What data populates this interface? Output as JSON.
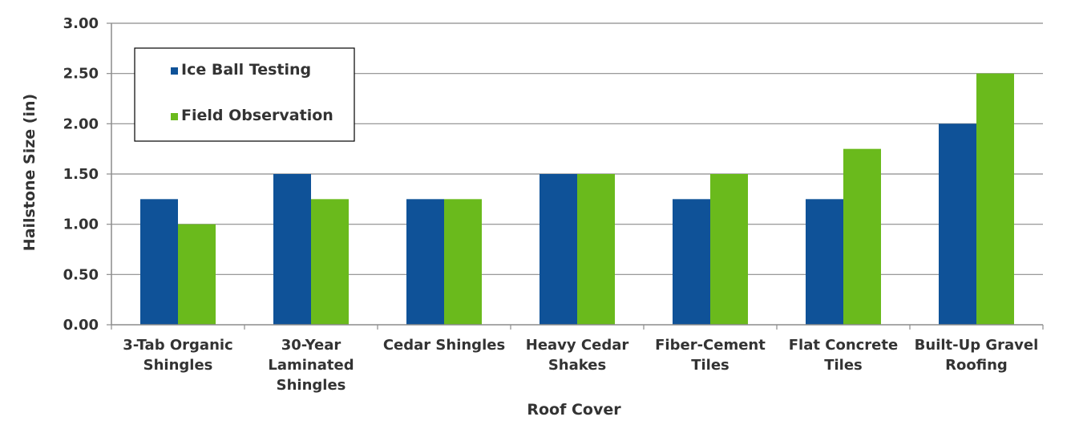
{
  "chart_data": {
    "type": "bar",
    "title": "",
    "xlabel": "Roof Cover",
    "ylabel": "Hailstone Size (in)",
    "ylim": [
      0,
      3
    ],
    "yticks": [
      "0.00",
      "0.50",
      "1.00",
      "1.50",
      "2.00",
      "2.50",
      "3.00"
    ],
    "grid": true,
    "legend_position": "top-left",
    "categories": [
      [
        "3-Tab Organic",
        "Shingles"
      ],
      [
        "30-Year",
        "Laminated",
        "Shingles"
      ],
      [
        "Cedar Shingles"
      ],
      [
        "Heavy Cedar",
        "Shakes"
      ],
      [
        "Fiber-Cement",
        "Tiles"
      ],
      [
        "Flat Concrete",
        "Tiles"
      ],
      [
        "Built-Up Gravel",
        "Roofing"
      ]
    ],
    "series": [
      {
        "name": "Ice Ball Testing",
        "color": "#0f5298",
        "values": [
          1.25,
          1.5,
          1.25,
          1.5,
          1.25,
          1.25,
          2.0
        ]
      },
      {
        "name": "Field Observation",
        "color": "#6aba1c",
        "values": [
          1.0,
          1.25,
          1.25,
          1.5,
          1.5,
          1.75,
          2.5
        ]
      }
    ]
  }
}
